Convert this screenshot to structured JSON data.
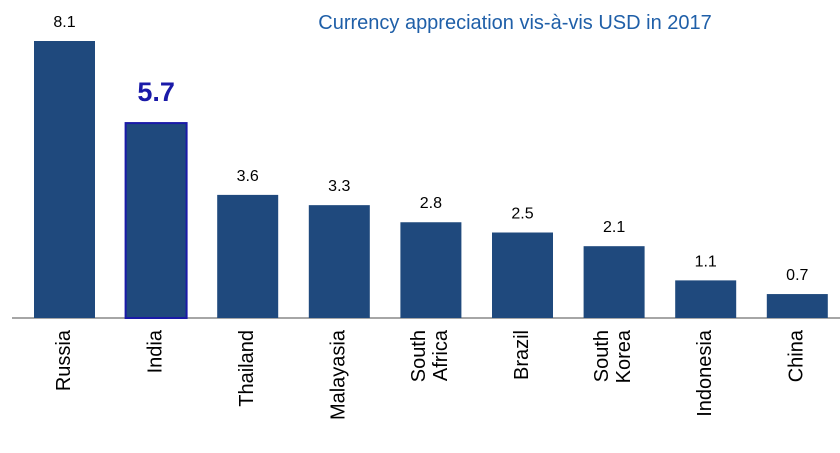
{
  "chart_data": {
    "type": "bar",
    "title": "Currency appreciation vis-à-vis USD in 2017",
    "categories": [
      "Russia",
      "India",
      "Thailand",
      "Malayasia",
      "South Africa",
      "Brazil",
      "South Korea",
      "Indonesia",
      "China"
    ],
    "values": [
      8.1,
      5.7,
      3.6,
      3.3,
      2.8,
      2.5,
      2.1,
      1.1,
      0.7
    ],
    "color": "#1f497d",
    "highlight": "India",
    "highlight_color": "#1a1aa8"
  }
}
